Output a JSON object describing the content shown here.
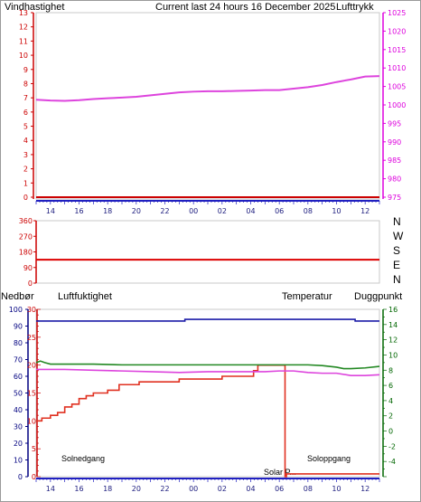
{
  "colors": {
    "axis_red": "#cc0000",
    "axis_magenta": "#dd00dd",
    "axis_blue": "#000080",
    "axis_green": "#006600",
    "time_axis": "#2020c0",
    "wind_line": "#cc0000",
    "pressure_line": "#dd44dd",
    "direction_line": "#dd0000",
    "rain_line": "#e03020",
    "humidity_line": "#1c1ca8",
    "temp_line": "#228822",
    "dew_line": "#dd44dd",
    "title_color": "#e0d000",
    "sun_color": "#e0d070"
  },
  "panel1": {
    "title": "Current last 24 hours 16 December 2025",
    "left_label": "Vindhastighet",
    "right_label": "Lufttrykk"
  },
  "panel2": {
    "compass": [
      "N",
      "W",
      "S",
      "E",
      "N"
    ]
  },
  "panel3": {
    "left_label": "Nedbør",
    "humidity_label": "Luftfuktighet",
    "temp_label": "Temperatur",
    "dew_label": "Duggpunkt",
    "sunset": "Solnedgang",
    "sunrise": "Soloppgang",
    "sunpos": "Solar P..."
  },
  "chart_data": [
    {
      "type": "line",
      "x_ticks": [
        "14",
        "16",
        "18",
        "20",
        "22",
        "00",
        "02",
        "04",
        "06",
        "08",
        "10",
        "12"
      ],
      "y_left": {
        "label": "Vindhastighet",
        "ylim": [
          0,
          13
        ],
        "ticks": [
          0,
          1,
          2,
          3,
          4,
          5,
          6,
          7,
          8,
          9,
          10,
          11,
          12,
          13
        ]
      },
      "y_right": {
        "label": "Lufttrykk",
        "ylim": [
          975,
          1025
        ],
        "ticks": [
          975,
          980,
          985,
          990,
          995,
          1000,
          1005,
          1010,
          1015,
          1020,
          1025
        ]
      },
      "series": [
        {
          "name": "Vindhastighet",
          "axis": "left",
          "x": [
            0,
            24
          ],
          "y": [
            0,
            0
          ]
        },
        {
          "name": "Lufttrykk",
          "axis": "right",
          "x": [
            0,
            1,
            2,
            3,
            4,
            5,
            6,
            7,
            8,
            9,
            10,
            11,
            12,
            13,
            14,
            15,
            16,
            17,
            18,
            19,
            20,
            21,
            22,
            23,
            24
          ],
          "y": [
            1001.4,
            1001.2,
            1001.1,
            1001.3,
            1001.6,
            1001.8,
            1002.0,
            1002.2,
            1002.6,
            1003.0,
            1003.4,
            1003.6,
            1003.7,
            1003.7,
            1003.8,
            1003.9,
            1004.0,
            1004.0,
            1004.4,
            1004.8,
            1005.4,
            1006.2,
            1006.9,
            1007.7,
            1007.8
          ]
        }
      ]
    },
    {
      "type": "line",
      "x_ticks": [
        "14",
        "16",
        "18",
        "20",
        "22",
        "00",
        "02",
        "04",
        "06",
        "08",
        "10",
        "12"
      ],
      "y_left": {
        "ylim": [
          0,
          360
        ],
        "ticks": [
          0,
          90,
          180,
          270,
          360
        ]
      },
      "series": [
        {
          "name": "Vindretning",
          "x": [
            0,
            24
          ],
          "y": [
            135,
            135
          ]
        }
      ]
    },
    {
      "type": "line",
      "x_ticks": [
        "14",
        "16",
        "18",
        "20",
        "22",
        "00",
        "02",
        "04",
        "06",
        "08",
        "10",
        "12"
      ],
      "y_humidity": {
        "label": "Luftfuktighet",
        "ylim": [
          0,
          100
        ],
        "ticks": [
          0,
          10,
          20,
          30,
          40,
          50,
          60,
          70,
          80,
          90,
          100
        ]
      },
      "y_rain": {
        "label": "Nedbør",
        "ylim": [
          0,
          30
        ],
        "ticks": [
          0,
          5,
          10,
          15,
          20,
          25,
          30
        ]
      },
      "y_temp": {
        "label": "Temperatur",
        "ylim": [
          -6,
          16
        ],
        "ticks": [
          -4,
          -2,
          0,
          2,
          4,
          6,
          8,
          10,
          12,
          14,
          16
        ]
      },
      "series": [
        {
          "name": "Luftfuktighet",
          "axis": "humidity",
          "x": [
            0,
            10.4,
            10.4,
            22.3,
            22.3,
            24
          ],
          "y": [
            93,
            93,
            94,
            94,
            93,
            93
          ]
        },
        {
          "name": "Nedbør",
          "axis": "rain",
          "x": [
            0,
            0.4,
            0.4,
            1.0,
            1.0,
            1.5,
            1.5,
            2.0,
            2.0,
            2.5,
            2.5,
            3.0,
            3.0,
            3.5,
            3.5,
            4.0,
            4.0,
            5.0,
            5.0,
            5.8,
            5.8,
            7.2,
            7.2,
            10.0,
            10.0,
            13.0,
            13.0,
            15.2,
            15.2,
            15.5,
            15.5,
            16.0,
            16.0,
            17.4,
            17.4,
            17.5,
            17.5,
            19.0,
            19.0,
            24
          ],
          "y": [
            10,
            10,
            10.5,
            10.5,
            11,
            11,
            11.5,
            11.5,
            12.5,
            12.5,
            13,
            13,
            14,
            14,
            14.5,
            14.5,
            15,
            15,
            15.5,
            15.5,
            16.5,
            16.5,
            17,
            17,
            17.5,
            17.5,
            18,
            18,
            19,
            19,
            20,
            20,
            20,
            20,
            0,
            0,
            0.5,
            0.5,
            0.5,
            0.5
          ]
        },
        {
          "name": "Temperatur",
          "axis": "temp",
          "x": [
            0,
            0.3,
            0.6,
            1,
            2,
            4,
            6,
            8,
            10,
            12,
            14,
            16,
            18,
            19,
            20,
            21,
            21.5,
            22,
            23,
            24
          ],
          "y": [
            9.0,
            9.2,
            9.0,
            8.8,
            8.8,
            8.8,
            8.7,
            8.7,
            8.7,
            8.7,
            8.7,
            8.7,
            8.7,
            8.7,
            8.6,
            8.4,
            8.2,
            8.2,
            8.3,
            8.5
          ]
        },
        {
          "name": "Duggpunkt",
          "axis": "temp",
          "x": [
            0,
            1,
            2,
            4,
            6,
            8,
            10,
            12,
            14,
            16,
            17,
            18,
            19,
            20,
            21,
            22,
            23,
            24
          ],
          "y": [
            8.1,
            8.1,
            8.1,
            8.0,
            7.9,
            7.8,
            7.7,
            7.8,
            7.8,
            7.8,
            7.9,
            7.9,
            7.7,
            7.6,
            7.6,
            7.3,
            7.3,
            7.4
          ]
        }
      ]
    }
  ]
}
